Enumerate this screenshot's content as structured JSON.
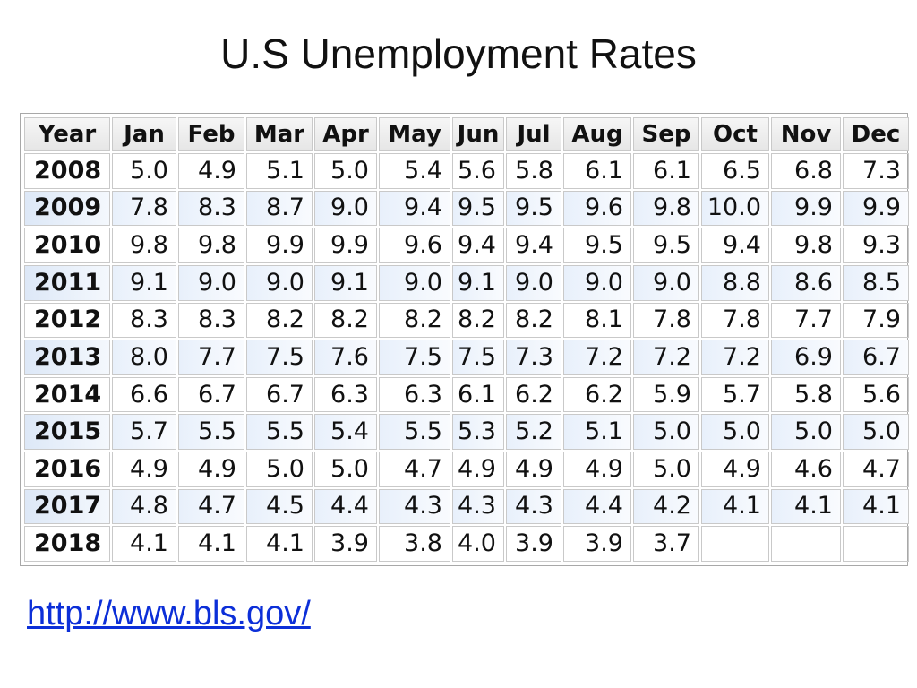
{
  "slide": {
    "title": "U.S Unemployment Rates",
    "source_link": "http://www.bls.gov/"
  },
  "table": {
    "headers": [
      "Year",
      "Jan",
      "Feb",
      "Mar",
      "Apr",
      "May",
      "Jun",
      "Jul",
      "Aug",
      "Sep",
      "Oct",
      "Nov",
      "Dec"
    ],
    "rows": [
      {
        "year": "2008",
        "values": [
          "5.0",
          "4.9",
          "5.1",
          "5.0",
          "5.4",
          "5.6",
          "5.8",
          "6.1",
          "6.1",
          "6.5",
          "6.8",
          "7.3"
        ]
      },
      {
        "year": "2009",
        "values": [
          "7.8",
          "8.3",
          "8.7",
          "9.0",
          "9.4",
          "9.5",
          "9.5",
          "9.6",
          "9.8",
          "10.0",
          "9.9",
          "9.9"
        ]
      },
      {
        "year": "2010",
        "values": [
          "9.8",
          "9.8",
          "9.9",
          "9.9",
          "9.6",
          "9.4",
          "9.4",
          "9.5",
          "9.5",
          "9.4",
          "9.8",
          "9.3"
        ]
      },
      {
        "year": "2011",
        "values": [
          "9.1",
          "9.0",
          "9.0",
          "9.1",
          "9.0",
          "9.1",
          "9.0",
          "9.0",
          "9.0",
          "8.8",
          "8.6",
          "8.5"
        ]
      },
      {
        "year": "2012",
        "values": [
          "8.3",
          "8.3",
          "8.2",
          "8.2",
          "8.2",
          "8.2",
          "8.2",
          "8.1",
          "7.8",
          "7.8",
          "7.7",
          "7.9"
        ]
      },
      {
        "year": "2013",
        "values": [
          "8.0",
          "7.7",
          "7.5",
          "7.6",
          "7.5",
          "7.5",
          "7.3",
          "7.2",
          "7.2",
          "7.2",
          "6.9",
          "6.7"
        ]
      },
      {
        "year": "2014",
        "values": [
          "6.6",
          "6.7",
          "6.7",
          "6.3",
          "6.3",
          "6.1",
          "6.2",
          "6.2",
          "5.9",
          "5.7",
          "5.8",
          "5.6"
        ]
      },
      {
        "year": "2015",
        "values": [
          "5.7",
          "5.5",
          "5.5",
          "5.4",
          "5.5",
          "5.3",
          "5.2",
          "5.1",
          "5.0",
          "5.0",
          "5.0",
          "5.0"
        ]
      },
      {
        "year": "2016",
        "values": [
          "4.9",
          "4.9",
          "5.0",
          "5.0",
          "4.7",
          "4.9",
          "4.9",
          "4.9",
          "5.0",
          "4.9",
          "4.6",
          "4.7"
        ]
      },
      {
        "year": "2017",
        "values": [
          "4.8",
          "4.7",
          "4.5",
          "4.4",
          "4.3",
          "4.3",
          "4.3",
          "4.4",
          "4.2",
          "4.1",
          "4.1",
          "4.1"
        ]
      },
      {
        "year": "2018",
        "values": [
          "4.1",
          "4.1",
          "4.1",
          "3.9",
          "3.8",
          "4.0",
          "3.9",
          "3.9",
          "3.7",
          "",
          "",
          ""
        ]
      }
    ]
  }
}
